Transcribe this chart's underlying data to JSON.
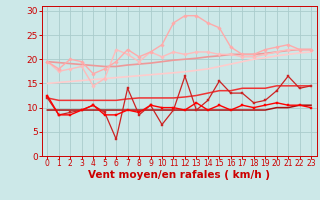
{
  "bg_color": "#cce8e8",
  "grid_color": "#aacccc",
  "xlabel": "Vent moyen/en rafales ( km/h )",
  "xlabel_color": "#cc0000",
  "x_ticks": [
    0,
    1,
    2,
    3,
    4,
    5,
    6,
    7,
    8,
    9,
    10,
    11,
    12,
    13,
    14,
    15,
    16,
    17,
    18,
    19,
    20,
    21,
    22,
    23
  ],
  "ylim": [
    0,
    31
  ],
  "yticks": [
    0,
    5,
    10,
    15,
    20,
    25,
    30
  ],
  "series": [
    {
      "color": "#ffbbbb",
      "marker": "D",
      "ms": 1.8,
      "lw": 1.0,
      "y": [
        19.5,
        17.5,
        18.0,
        18.5,
        14.5,
        16.0,
        22.0,
        21.0,
        19.5,
        21.5,
        20.5,
        21.5,
        21.0,
        21.5,
        21.5,
        21.0,
        21.0,
        20.5,
        20.5,
        21.0,
        21.5,
        22.0,
        22.0,
        22.0
      ]
    },
    {
      "color": "#ffaaaa",
      "marker": "D",
      "ms": 1.8,
      "lw": 1.0,
      "y": [
        19.5,
        18.0,
        20.0,
        19.5,
        17.0,
        18.0,
        19.5,
        22.0,
        20.5,
        21.5,
        23.0,
        27.5,
        29.0,
        29.0,
        27.5,
        26.5,
        22.5,
        21.0,
        21.0,
        22.0,
        22.5,
        23.0,
        22.0,
        22.0
      ]
    },
    {
      "color": "#ffcccc",
      "marker": null,
      "ms": 0,
      "lw": 1.2,
      "y": [
        15.0,
        15.2,
        15.4,
        15.6,
        15.8,
        16.0,
        16.2,
        16.4,
        16.6,
        16.8,
        17.0,
        17.2,
        17.4,
        17.7,
        18.0,
        18.5,
        19.0,
        19.5,
        20.0,
        20.3,
        20.7,
        21.0,
        21.3,
        21.5
      ]
    },
    {
      "color": "#ee9999",
      "marker": null,
      "ms": 0,
      "lw": 1.2,
      "y": [
        19.5,
        19.3,
        19.1,
        18.9,
        18.7,
        18.5,
        18.5,
        18.8,
        19.0,
        19.2,
        19.5,
        19.8,
        20.0,
        20.2,
        20.5,
        20.7,
        21.0,
        21.0,
        21.0,
        21.2,
        21.5,
        21.8,
        22.0,
        22.0
      ]
    },
    {
      "color": "#cc2222",
      "marker": "s",
      "ms": 2.0,
      "lw": 0.9,
      "y": [
        12.0,
        8.5,
        9.0,
        9.5,
        10.5,
        9.0,
        3.5,
        14.0,
        8.5,
        10.5,
        6.5,
        9.5,
        16.5,
        9.5,
        11.5,
        15.5,
        13.0,
        13.0,
        11.0,
        11.5,
        13.5,
        16.5,
        14.0,
        14.5
      ]
    },
    {
      "color": "#ff0000",
      "marker": "s",
      "ms": 2.0,
      "lw": 1.0,
      "y": [
        12.5,
        8.5,
        8.5,
        9.5,
        10.5,
        8.5,
        8.5,
        9.5,
        9.0,
        10.5,
        10.0,
        10.0,
        9.5,
        11.0,
        9.5,
        10.5,
        9.5,
        10.5,
        10.0,
        10.5,
        11.0,
        10.5,
        10.5,
        10.0
      ]
    },
    {
      "color": "#aa1111",
      "marker": null,
      "ms": 0,
      "lw": 1.1,
      "y": [
        9.5,
        9.5,
        9.5,
        9.5,
        9.5,
        9.5,
        9.5,
        9.5,
        9.5,
        9.5,
        9.5,
        9.5,
        9.5,
        9.5,
        9.5,
        9.5,
        9.5,
        9.5,
        9.5,
        9.5,
        10.0,
        10.0,
        10.5,
        10.5
      ]
    },
    {
      "color": "#ee3333",
      "marker": null,
      "ms": 0,
      "lw": 1.1,
      "y": [
        12.0,
        11.5,
        11.5,
        11.5,
        11.5,
        11.5,
        11.5,
        11.8,
        12.0,
        12.0,
        12.0,
        12.0,
        12.2,
        12.5,
        13.0,
        13.5,
        13.5,
        14.0,
        14.0,
        14.0,
        14.5,
        14.5,
        14.5,
        14.5
      ]
    }
  ],
  "tick_color": "#cc0000",
  "tick_fontsize": 5.5,
  "xlabel_fontsize": 7.5,
  "ytick_color": "#cc0000",
  "ytick_fontsize": 6.5
}
